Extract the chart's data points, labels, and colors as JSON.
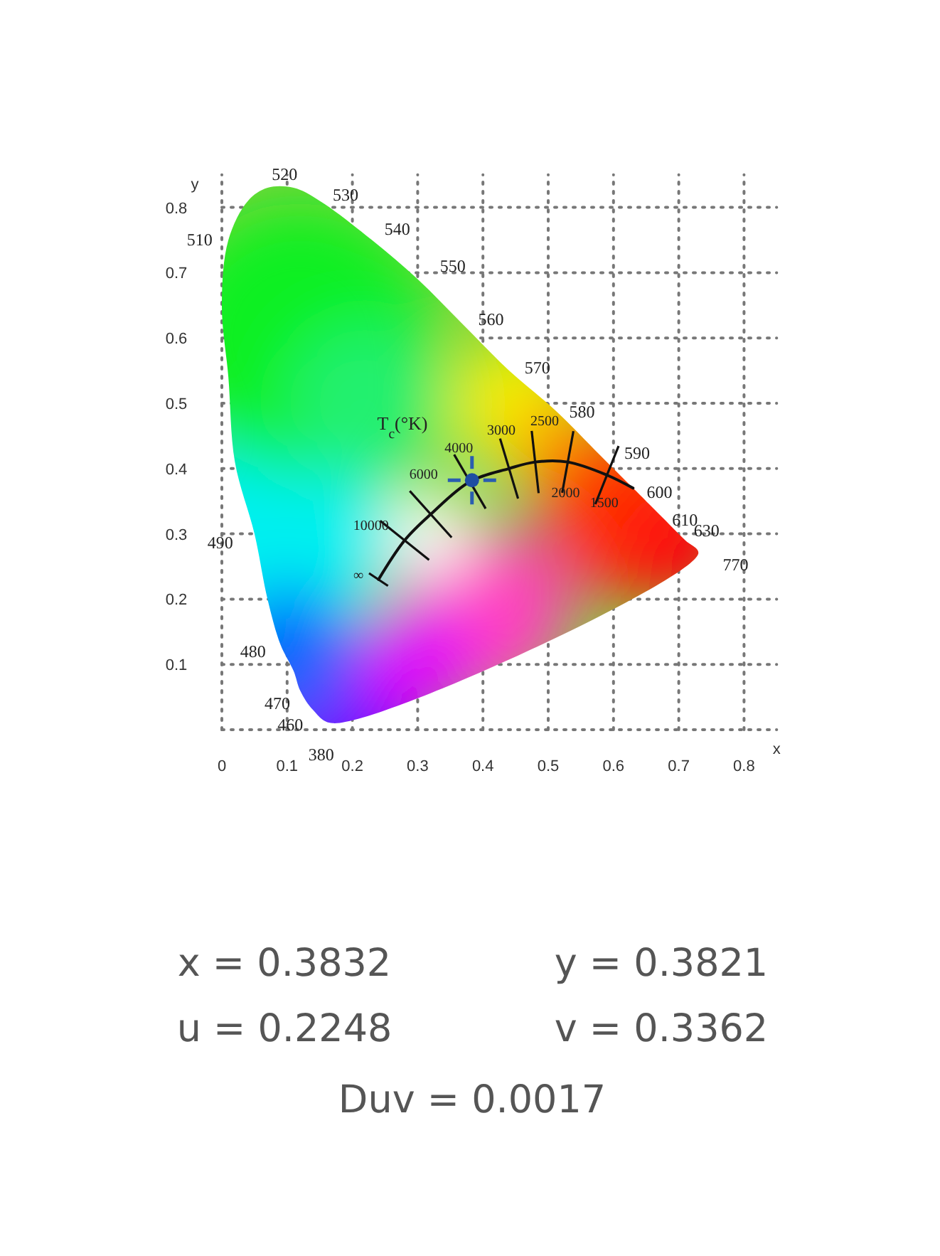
{
  "chart_data": {
    "type": "scatter",
    "xlabel": "x",
    "ylabel": "y",
    "xlim": [
      0,
      0.85
    ],
    "ylim": [
      0,
      0.85
    ],
    "xticks": [
      0,
      0.1,
      0.2,
      0.3,
      0.4,
      0.5,
      0.6,
      0.7,
      0.8
    ],
    "yticks": [
      0.1,
      0.2,
      0.3,
      0.4,
      0.5,
      0.6,
      0.7,
      0.8
    ],
    "grid": true,
    "series": [
      {
        "type": "area",
        "color": "#7fd43c",
        "x": [
          0.17,
          0.14,
          0.12,
          0.11,
          0.09,
          0.07,
          0.05,
          0.02,
          0.01,
          0,
          0.01,
          0.04,
          0.07,
          0.11,
          0.15,
          0.23,
          0.3,
          0.37,
          0.44,
          0.51,
          0.58,
          0.63,
          0.67,
          0.69,
          0.71,
          0.73
        ],
        "values": [
          0.01,
          0.03,
          0.06,
          0.09,
          0.13,
          0.2,
          0.3,
          0.41,
          0.54,
          0.65,
          0.75,
          0.81,
          0.83,
          0.83,
          0.81,
          0.75,
          0.69,
          0.62,
          0.55,
          0.49,
          0.42,
          0.37,
          0.33,
          0.31,
          0.29,
          0.27
        ]
      },
      {
        "type": "line",
        "color": "#111111",
        "x": [
          0.24,
          0.28,
          0.32,
          0.38,
          0.44,
          0.48,
          0.53,
          0.59,
          0.63
        ],
        "values": [
          0.23,
          0.29,
          0.33,
          0.38,
          0.4,
          0.41,
          0.41,
          0.39,
          0.37
        ]
      },
      {
        "type": "scatter",
        "color": "#1d4ea3",
        "marker": "circle",
        "x": [
          0.3832
        ],
        "values": [
          0.3821
        ]
      }
    ],
    "annotations": [
      {
        "text": "520",
        "x": 0.0743,
        "y": 0.8338
      },
      {
        "text": "530",
        "x": 0.1547,
        "y": 0.8059
      },
      {
        "text": "540",
        "x": 0.2296,
        "y": 0.7543
      },
      {
        "text": "550",
        "x": 0.3016,
        "y": 0.6923
      },
      {
        "text": "560",
        "x": 0.3731,
        "y": 0.6245
      },
      {
        "text": "570",
        "x": 0.4441,
        "y": 0.5547
      },
      {
        "text": "580",
        "x": 0.5125,
        "y": 0.4866
      },
      {
        "text": "590",
        "x": 0.5752,
        "y": 0.4242
      },
      {
        "text": "600",
        "x": 0.627,
        "y": 0.3725
      },
      {
        "text": "610",
        "x": 0.6658,
        "y": 0.334
      },
      {
        "text": "630",
        "x": 0.7079,
        "y": 0.292
      },
      {
        "text": "770",
        "x": 0.7347,
        "y": 0.2653
      },
      {
        "text": "510",
        "x": 0.0139,
        "y": 0.7502
      },
      {
        "text": "490",
        "x": 0.0454,
        "y": 0.295
      },
      {
        "text": "480",
        "x": 0.0913,
        "y": 0.1327
      },
      {
        "text": "470",
        "x": 0.1241,
        "y": 0.0578
      },
      {
        "text": "460",
        "x": 0.144,
        "y": 0.0297
      },
      {
        "text": "380",
        "x": 0.1741,
        "y": 0.005
      },
      {
        "text": "10000",
        "x": 0.2807,
        "y": 0.2884
      },
      {
        "text": "6000",
        "x": 0.3221,
        "y": 0.3318
      },
      {
        "text": "4000",
        "x": 0.3805,
        "y": 0.3768
      },
      {
        "text": "3000",
        "x": 0.4369,
        "y": 0.4041
      },
      {
        "text": "2500",
        "x": 0.477,
        "y": 0.4137
      },
      {
        "text": "2000",
        "x": 0.5267,
        "y": 0.4133
      },
      {
        "text": "1500",
        "x": 0.5857,
        "y": 0.3931
      },
      {
        "text": "∞",
        "x": 0.2399,
        "y": 0.2342
      },
      "T$_{c}$(°K)",
      "x = 0.3832",
      "y = 0.3821",
      "u = 0.2248",
      "v = 0.3362",
      "Duv = 0.0017"
    ]
  }
}
